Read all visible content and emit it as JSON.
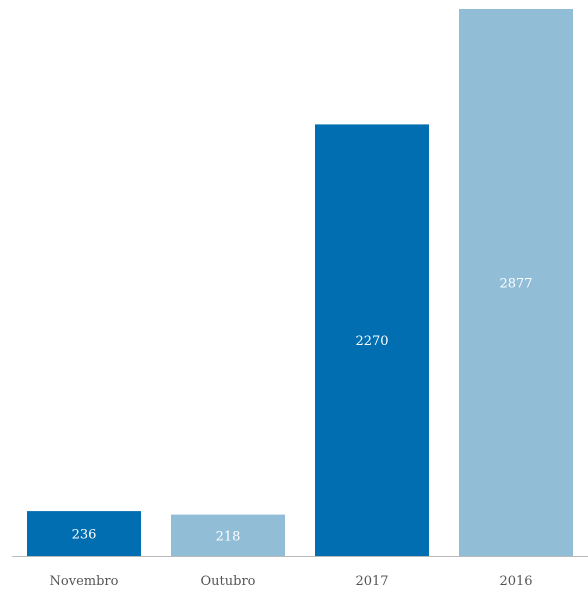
{
  "chart_data": {
    "type": "bar",
    "categories": [
      "Novembro",
      "Outubro",
      "2017",
      "2016"
    ],
    "values": [
      236,
      218,
      2270,
      2877
    ],
    "colors": [
      "#006eb0",
      "#91bdd7",
      "#006eb0",
      "#91bdd7"
    ],
    "axis_color": "#bbbbbb",
    "ylim": [
      0,
      2877
    ],
    "grid": false,
    "legend": "none",
    "title": "",
    "xlabel": "",
    "ylabel": ""
  }
}
